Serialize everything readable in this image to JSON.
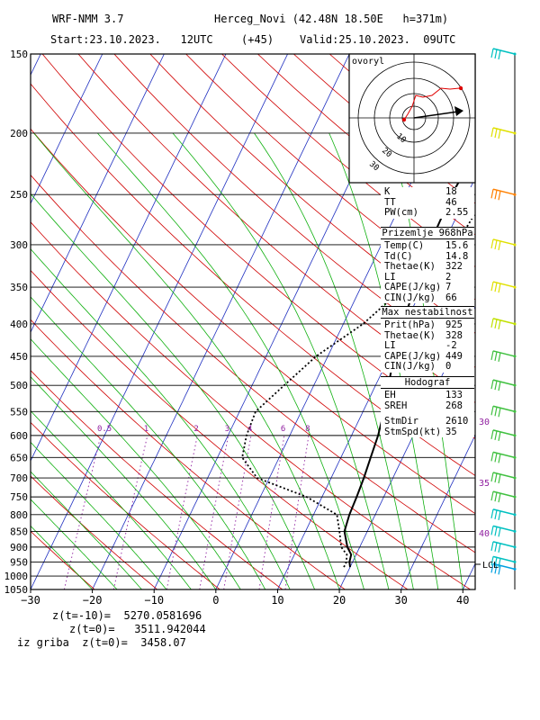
{
  "header": {
    "model": "WRF-NMM 3.7",
    "station": "Herceg_Novi (42.48N 18.50E   h=371m)",
    "start": "Start:23.10.2023.   12UTC",
    "offset": "(+45)",
    "valid": "Valid:25.10.2023.  09UTC"
  },
  "hodograph": {
    "label": "ovoryl",
    "rings": [
      "10",
      "20",
      "30",
      "40"
    ]
  },
  "panels": {
    "indices": [
      {
        "k": "K",
        "v": "18"
      },
      {
        "k": "TT",
        "v": "46"
      },
      {
        "k": "PW(cm)",
        "v": "2.55"
      }
    ],
    "surface": {
      "title": "Prizemlje 968hPa",
      "rows": [
        {
          "k": "Temp(C)",
          "v": "15.6"
        },
        {
          "k": "Td(C)",
          "v": "14.8"
        },
        {
          "k": "Thetae(K)",
          "v": "322"
        },
        {
          "k": "LI",
          "v": "2"
        },
        {
          "k": "CAPE(J/kg)",
          "v": "7"
        },
        {
          "k": "CIN(J/kg)",
          "v": "66"
        }
      ]
    },
    "unstable": {
      "title": "Max nestabilnost",
      "rows": [
        {
          "k": "Prit(hPa)",
          "v": "925"
        },
        {
          "k": "Thetae(K)",
          "v": "328"
        },
        {
          "k": "LI",
          "v": "-2"
        },
        {
          "k": "CAPE(J/kg)",
          "v": "449"
        },
        {
          "k": "CIN(J/kg)",
          "v": "0"
        }
      ]
    },
    "hodo": {
      "title": "Hodograf",
      "rows": [
        {
          "k": "EH",
          "v": "133"
        },
        {
          "k": "SREH",
          "v": "268"
        },
        {
          "k": "",
          "v": ""
        },
        {
          "k": "StmDir",
          "v": "2610"
        },
        {
          "k": "StmSpd(kt)",
          "v": "35"
        }
      ]
    }
  },
  "footer": {
    "l1": "z(t=-10)=  5270.0581696",
    "l2": "z(t=0)=   3511.942044",
    "l3": "iz griba  z(t=0)=  3458.07"
  },
  "chart_data": {
    "type": "line",
    "pressure_levels": [
      150,
      200,
      250,
      300,
      350,
      400,
      450,
      500,
      550,
      600,
      650,
      700,
      750,
      800,
      850,
      900,
      950,
      1000,
      1050
    ],
    "pressure_labels": [
      "150",
      "200",
      "250",
      "300",
      "350",
      "400",
      "450",
      "500",
      "550",
      "600",
      "650",
      "700",
      "750",
      "800",
      "850",
      "900",
      "950",
      "1000",
      "1050"
    ],
    "x_ticks": [
      -30,
      -20,
      -10,
      0,
      10,
      20,
      30,
      40
    ],
    "x_tick_labels": [
      "−30",
      "−20",
      "−10",
      "0",
      "10",
      "20",
      "30",
      "40"
    ],
    "xlim": [
      -30,
      42
    ],
    "ylim": [
      1050,
      150
    ],
    "mixing_ratio_labels": [
      "0.5",
      "1",
      "2",
      "3",
      "4",
      "6",
      "8"
    ],
    "mixing_ratio_values": [
      0.5,
      1,
      2,
      3,
      4,
      6,
      8
    ],
    "theta_w_labels": [
      "30",
      "35",
      "40"
    ],
    "lcl_label": "LCL",
    "series": [
      {
        "style": "solid",
        "p": [
          968,
          950,
          925,
          900,
          850,
          800,
          750,
          700,
          650,
          600,
          550,
          500,
          450,
          400,
          350,
          300,
          250,
          200,
          150
        ],
        "x": [
          20.0,
          19.5,
          19.2,
          18.0,
          16.3,
          15.8,
          15.6,
          15.3,
          14.8,
          14.3,
          13.4,
          12.1,
          10.7,
          9.6,
          8.7,
          7.8,
          7.5,
          8.3,
          9.4
        ]
      },
      {
        "style": "dotted",
        "p": [
          968,
          950,
          925,
          900,
          850,
          800,
          750,
          700,
          650,
          600,
          550,
          500,
          450,
          400,
          350,
          300,
          280,
          250,
          200,
          180,
          150
        ],
        "x": [
          19.0,
          19.0,
          18.5,
          17.0,
          15.5,
          13.8,
          7.5,
          -2.0,
          -6.0,
          -7.0,
          -7.4,
          -4.8,
          -1.9,
          3.2,
          7.0,
          11.0,
          12.5,
          13.1,
          17.8,
          22.8,
          31.6
        ]
      }
    ],
    "wind_markers": [
      {
        "p": 150,
        "color": "#00c0c0"
      },
      {
        "p": 200,
        "color": "#e0e000"
      },
      {
        "p": 250,
        "color": "#ff8000"
      },
      {
        "p": 300,
        "color": "#e0e000"
      },
      {
        "p": 350,
        "color": "#e0e000"
      },
      {
        "p": 400,
        "color": "#c0e000"
      },
      {
        "p": 450,
        "color": "#40c040"
      },
      {
        "p": 500,
        "color": "#40c040"
      },
      {
        "p": 550,
        "color": "#40c040"
      },
      {
        "p": 600,
        "color": "#40c040"
      },
      {
        "p": 650,
        "color": "#40c040"
      },
      {
        "p": 700,
        "color": "#40c040"
      },
      {
        "p": 750,
        "color": "#40c040"
      },
      {
        "p": 800,
        "color": "#00c0c0"
      },
      {
        "p": 850,
        "color": "#00c0c0"
      },
      {
        "p": 900,
        "color": "#00c0c0"
      },
      {
        "p": 950,
        "color": "#00c0c0"
      },
      {
        "p": 975,
        "color": "#00a0e0"
      }
    ]
  }
}
